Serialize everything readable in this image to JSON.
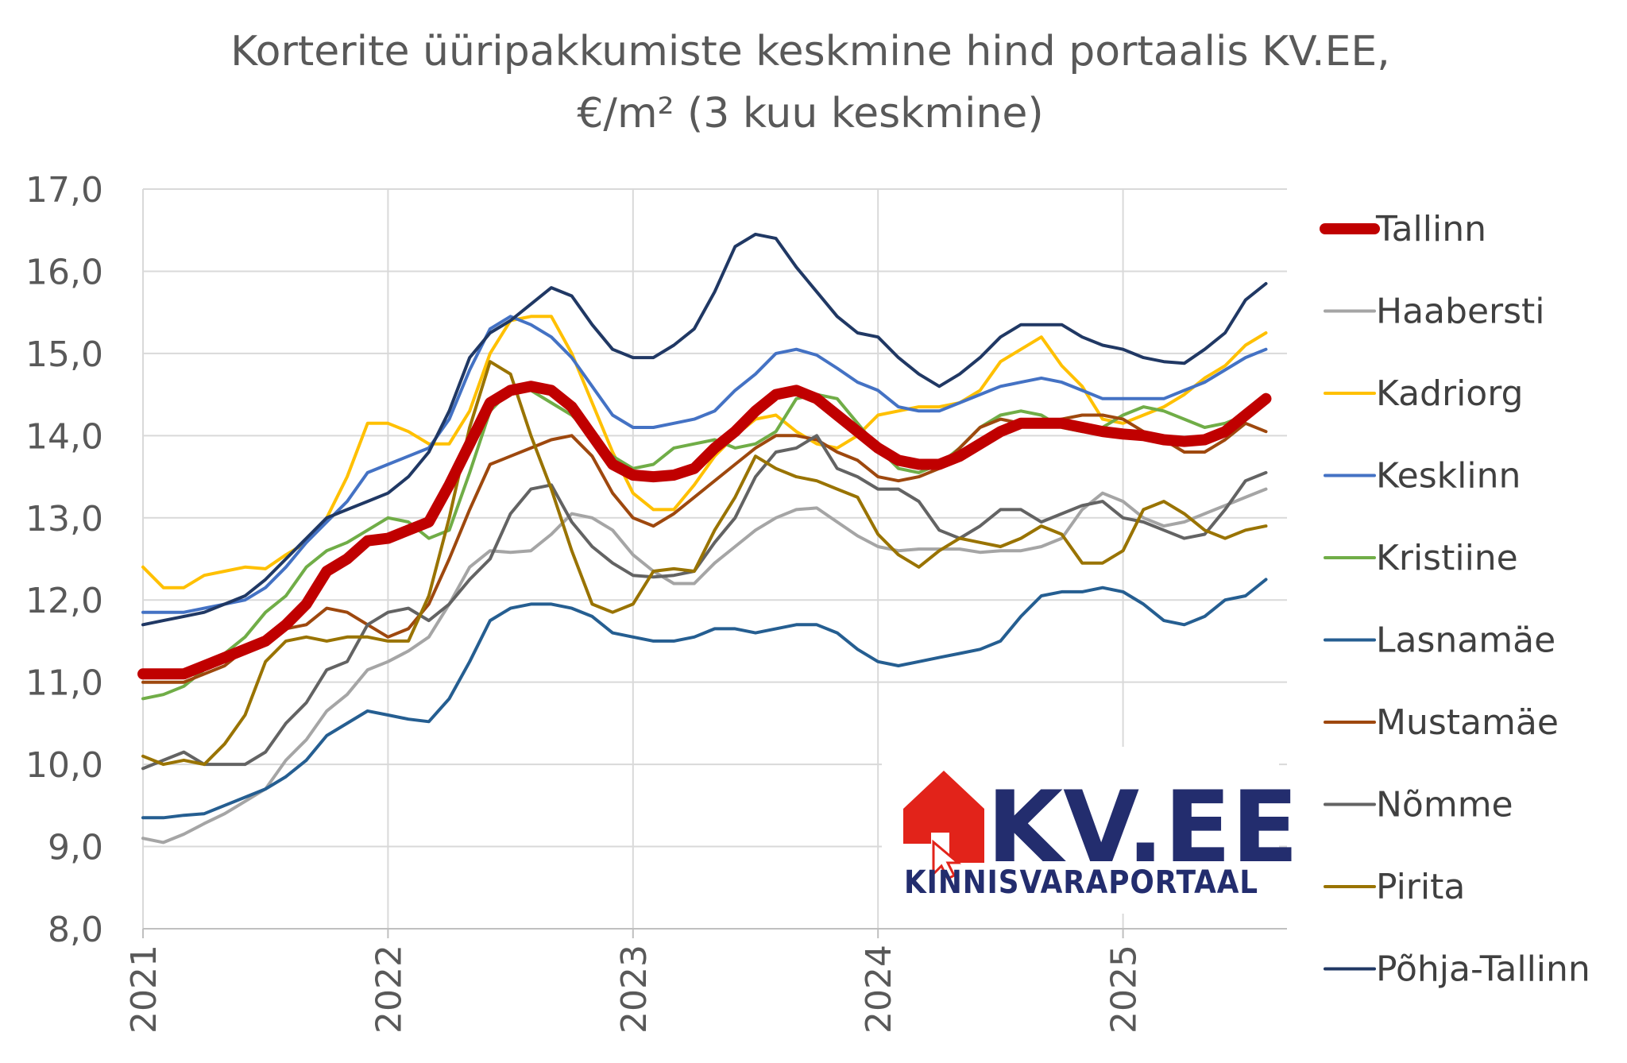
{
  "chart_data": {
    "type": "line",
    "title": [
      "Korterite üüripakkumiste keskmine hind portaalis KV.EE,",
      "€/m² (3 kuu keskmine)"
    ],
    "xlabel": "",
    "ylabel": "",
    "ylim": [
      8.0,
      17.0
    ],
    "yticks": [
      "8,0",
      "9,0",
      "10,0",
      "11,0",
      "12,0",
      "13,0",
      "14,0",
      "15,0",
      "16,0",
      "17,0"
    ],
    "xticks": [
      "2021",
      "2022",
      "2023",
      "2024",
      "2025"
    ],
    "x_start": "2021-01",
    "x_count": 56,
    "grid": true,
    "legend_position": "right",
    "series": [
      {
        "name": "Tallinn",
        "color": "#c00000",
        "width": 14,
        "values": [
          11.1,
          11.1,
          11.1,
          11.2,
          11.3,
          11.4,
          11.5,
          11.7,
          11.95,
          12.35,
          12.5,
          12.72,
          12.75,
          12.85,
          12.95,
          13.4,
          13.9,
          14.4,
          14.55,
          14.6,
          14.55,
          14.35,
          14.0,
          13.65,
          13.52,
          13.5,
          13.52,
          13.6,
          13.85,
          14.05,
          14.3,
          14.5,
          14.55,
          14.45,
          14.25,
          14.05,
          13.85,
          13.7,
          13.65,
          13.65,
          13.75,
          13.9,
          14.05,
          14.15,
          14.15,
          14.15,
          14.1,
          14.05,
          14.02,
          14.0,
          13.95,
          13.93,
          13.95,
          14.05,
          14.25,
          14.45
        ]
      },
      {
        "name": "Haabersti",
        "color": "#a5a5a5",
        "width": 4,
        "values": [
          9.1,
          9.05,
          9.15,
          9.28,
          9.4,
          9.55,
          9.7,
          10.05,
          10.3,
          10.65,
          10.85,
          11.15,
          11.25,
          11.38,
          11.55,
          11.95,
          12.4,
          12.6,
          12.58,
          12.6,
          12.8,
          13.05,
          13.0,
          12.85,
          12.55,
          12.35,
          12.2,
          12.2,
          12.45,
          12.65,
          12.85,
          13.0,
          13.1,
          13.12,
          12.95,
          12.78,
          12.65,
          12.6,
          12.62,
          12.62,
          12.62,
          12.58,
          12.6,
          12.6,
          12.65,
          12.75,
          13.1,
          13.3,
          13.2,
          13.0,
          12.9,
          12.95,
          13.05,
          13.15,
          13.25,
          13.35
        ]
      },
      {
        "name": "Kadriorg",
        "color": "#ffc000",
        "width": 4,
        "values": [
          12.4,
          12.15,
          12.15,
          12.3,
          12.35,
          12.4,
          12.38,
          12.55,
          12.7,
          13.0,
          13.5,
          14.15,
          14.15,
          14.05,
          13.9,
          13.9,
          14.3,
          15.0,
          15.4,
          15.45,
          15.45,
          15.0,
          14.4,
          13.8,
          13.3,
          13.1,
          13.1,
          13.4,
          13.75,
          14.0,
          14.2,
          14.25,
          14.05,
          13.9,
          13.85,
          14.0,
          14.25,
          14.3,
          14.35,
          14.35,
          14.4,
          14.55,
          14.9,
          15.05,
          15.2,
          14.85,
          14.6,
          14.2,
          14.15,
          14.25,
          14.35,
          14.5,
          14.7,
          14.85,
          15.1,
          15.25
        ]
      },
      {
        "name": "Kesklinn",
        "color": "#4472c4",
        "width": 4,
        "values": [
          11.85,
          11.85,
          11.85,
          11.9,
          11.95,
          12.0,
          12.15,
          12.4,
          12.7,
          12.95,
          13.2,
          13.55,
          13.65,
          13.75,
          13.85,
          14.2,
          14.8,
          15.3,
          15.45,
          15.35,
          15.2,
          14.95,
          14.6,
          14.25,
          14.1,
          14.1,
          14.15,
          14.2,
          14.3,
          14.55,
          14.75,
          15.0,
          15.05,
          14.98,
          14.82,
          14.65,
          14.55,
          14.35,
          14.3,
          14.3,
          14.4,
          14.5,
          14.6,
          14.65,
          14.7,
          14.65,
          14.55,
          14.45,
          14.45,
          14.45,
          14.45,
          14.55,
          14.65,
          14.8,
          14.95,
          15.05
        ]
      },
      {
        "name": "Kristiine",
        "color": "#70ad47",
        "width": 4,
        "values": [
          10.8,
          10.85,
          10.95,
          11.15,
          11.35,
          11.55,
          11.85,
          12.05,
          12.4,
          12.6,
          12.7,
          12.85,
          13.0,
          12.95,
          12.75,
          12.85,
          13.55,
          14.3,
          14.55,
          14.55,
          14.4,
          14.25,
          14.0,
          13.75,
          13.6,
          13.65,
          13.85,
          13.9,
          13.95,
          13.85,
          13.9,
          14.05,
          14.45,
          14.5,
          14.45,
          14.15,
          13.85,
          13.6,
          13.55,
          13.65,
          13.85,
          14.1,
          14.25,
          14.3,
          14.25,
          14.1,
          14.05,
          14.1,
          14.25,
          14.35,
          14.3,
          14.2,
          14.1,
          14.15,
          14.25,
          14.5
        ]
      },
      {
        "name": "Lasnamäe",
        "color": "#255e91",
        "width": 4,
        "values": [
          9.35,
          9.35,
          9.38,
          9.4,
          9.5,
          9.6,
          9.7,
          9.85,
          10.05,
          10.35,
          10.5,
          10.65,
          10.6,
          10.55,
          10.52,
          10.8,
          11.25,
          11.75,
          11.9,
          11.95,
          11.95,
          11.9,
          11.8,
          11.6,
          11.55,
          11.5,
          11.5,
          11.55,
          11.65,
          11.65,
          11.6,
          11.65,
          11.7,
          11.7,
          11.6,
          11.4,
          11.25,
          11.2,
          11.25,
          11.3,
          11.35,
          11.4,
          11.5,
          11.8,
          12.05,
          12.1,
          12.1,
          12.15,
          12.1,
          11.95,
          11.75,
          11.7,
          11.8,
          12.0,
          12.05,
          12.25
        ]
      },
      {
        "name": "Mustamäe",
        "color": "#9e480e",
        "width": 4,
        "values": [
          11.0,
          11.0,
          11.0,
          11.1,
          11.2,
          11.4,
          11.55,
          11.65,
          11.7,
          11.9,
          11.85,
          11.7,
          11.55,
          11.65,
          11.95,
          12.5,
          13.1,
          13.65,
          13.75,
          13.85,
          13.95,
          14.0,
          13.75,
          13.3,
          13.0,
          12.9,
          13.05,
          13.25,
          13.45,
          13.65,
          13.85,
          14.0,
          14.0,
          13.95,
          13.8,
          13.7,
          13.5,
          13.45,
          13.5,
          13.6,
          13.85,
          14.1,
          14.2,
          14.15,
          14.15,
          14.2,
          14.25,
          14.25,
          14.2,
          14.05,
          13.95,
          13.8,
          13.8,
          13.95,
          14.15,
          14.05
        ]
      },
      {
        "name": "Nõmme",
        "color": "#636363",
        "width": 4,
        "values": [
          9.95,
          10.05,
          10.15,
          10.0,
          10.0,
          10.0,
          10.15,
          10.5,
          10.75,
          11.15,
          11.25,
          11.7,
          11.85,
          11.9,
          11.75,
          11.95,
          12.25,
          12.5,
          13.05,
          13.35,
          13.4,
          12.95,
          12.65,
          12.45,
          12.3,
          12.28,
          12.3,
          12.35,
          12.7,
          13.0,
          13.5,
          13.8,
          13.85,
          14.0,
          13.6,
          13.5,
          13.35,
          13.35,
          13.2,
          12.85,
          12.75,
          12.9,
          13.1,
          13.1,
          12.95,
          13.05,
          13.15,
          13.2,
          13.0,
          12.95,
          12.85,
          12.75,
          12.8,
          13.1,
          13.45,
          13.55
        ]
      },
      {
        "name": "Pirita",
        "color": "#997300",
        "width": 4,
        "values": [
          10.1,
          10.0,
          10.05,
          10.0,
          10.25,
          10.6,
          11.25,
          11.5,
          11.55,
          11.5,
          11.55,
          11.55,
          11.5,
          11.5,
          12.05,
          13.0,
          14.1,
          14.9,
          14.75,
          14.0,
          13.35,
          12.6,
          11.95,
          11.85,
          11.95,
          12.35,
          12.38,
          12.35,
          12.85,
          13.25,
          13.75,
          13.6,
          13.5,
          13.45,
          13.35,
          13.25,
          12.8,
          12.55,
          12.4,
          12.6,
          12.75,
          12.7,
          12.65,
          12.75,
          12.9,
          12.8,
          12.45,
          12.45,
          12.6,
          13.1,
          13.2,
          13.05,
          12.85,
          12.75,
          12.85,
          12.9
        ]
      },
      {
        "name": "Põhja-Tallinn",
        "color": "#203864",
        "width": 4,
        "values": [
          11.7,
          11.75,
          11.8,
          11.85,
          11.95,
          12.05,
          12.25,
          12.5,
          12.75,
          13.0,
          13.1,
          13.2,
          13.3,
          13.5,
          13.8,
          14.3,
          14.95,
          15.25,
          15.4,
          15.6,
          15.8,
          15.7,
          15.35,
          15.05,
          14.95,
          14.95,
          15.1,
          15.3,
          15.75,
          16.3,
          16.45,
          16.4,
          16.05,
          15.75,
          15.45,
          15.25,
          15.2,
          14.95,
          14.75,
          14.6,
          14.75,
          14.95,
          15.2,
          15.35,
          15.35,
          15.35,
          15.2,
          15.1,
          15.05,
          14.95,
          14.9,
          14.88,
          15.05,
          15.25,
          15.65,
          15.85
        ]
      }
    ]
  },
  "logo": {
    "main": "KV.EE",
    "sub": "KINNISVARAPORTAAL",
    "house_color": "#e2231a",
    "text_color": "#232d6e"
  }
}
